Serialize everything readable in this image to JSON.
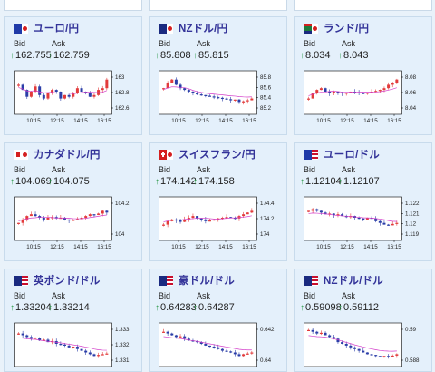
{
  "labels": {
    "bid": "Bid",
    "ask": "Ask"
  },
  "cards": [
    {
      "pair": "ユーロ/円",
      "flag": "eu-jp",
      "bid": "162.755",
      "ask": "162.759",
      "chart": {
        "y_ticks": [
          "163",
          "162.8",
          "162.6"
        ],
        "x_ticks": [
          "10:15",
          "12:15",
          "14:15",
          "16:15"
        ]
      }
    },
    {
      "pair": "NZドル/円",
      "flag": "nz-jp",
      "bid": "85.808",
      "ask": "85.815",
      "chart": {
        "y_ticks": [
          "85.8",
          "85.6",
          "85.4",
          "85.2"
        ],
        "x_ticks": [
          "10:15",
          "12:15",
          "14:15",
          "16:15"
        ]
      }
    },
    {
      "pair": "ランド/円",
      "flag": "za-jp",
      "bid": "8.034",
      "ask": "8.043",
      "chart": {
        "y_ticks": [
          "8.08",
          "8.06",
          "8.04"
        ],
        "x_ticks": [
          "10:15",
          "12:15",
          "14:15",
          "16:15"
        ]
      }
    },
    {
      "pair": "カナダドル/円",
      "flag": "ca-jp",
      "bid": "104.069",
      "ask": "104.075",
      "chart": {
        "y_ticks": [
          "104.2",
          "104"
        ],
        "x_ticks": [
          "10:15",
          "12:15",
          "14:15",
          "16:15"
        ]
      }
    },
    {
      "pair": "スイスフラン/円",
      "flag": "ch-jp",
      "bid": "174.142",
      "ask": "174.158",
      "chart": {
        "y_ticks": [
          "174.4",
          "174.2",
          "174"
        ],
        "x_ticks": [
          "10:15",
          "12:15",
          "14:15",
          "16:15"
        ]
      }
    },
    {
      "pair": "ユーロ/ドル",
      "flag": "eu-us",
      "bid": "1.12104",
      "ask": "1.12107",
      "chart": {
        "y_ticks": [
          "1.122",
          "1.121",
          "1.12",
          "1.119"
        ],
        "x_ticks": [
          "10:15",
          "12:15",
          "14:15",
          "16:15"
        ]
      }
    },
    {
      "pair": "英ポンド/ドル",
      "flag": "gb-us",
      "bid": "1.33204",
      "ask": "1.33214",
      "chart": {
        "y_ticks": [
          "1.333",
          "1.332",
          "1.331"
        ],
        "x_ticks": []
      }
    },
    {
      "pair": "豪ドル/ドル",
      "flag": "au-us",
      "bid": "0.64283",
      "ask": "0.64287",
      "chart": {
        "y_ticks": [
          "0.642",
          "0.64"
        ],
        "x_ticks": []
      }
    },
    {
      "pair": "NZドル/ドル",
      "flag": "nz-us",
      "bid": "0.59098",
      "ask": "0.59112",
      "chart": {
        "y_ticks": [
          "0.59",
          "0.588"
        ],
        "x_ticks": []
      }
    }
  ],
  "colors": {
    "up_candle": "#e23b3b",
    "down_candle": "#2b3ea8",
    "ma_line": "#d33cc9",
    "title": "#333399",
    "arrow": "#2e9a4a"
  }
}
